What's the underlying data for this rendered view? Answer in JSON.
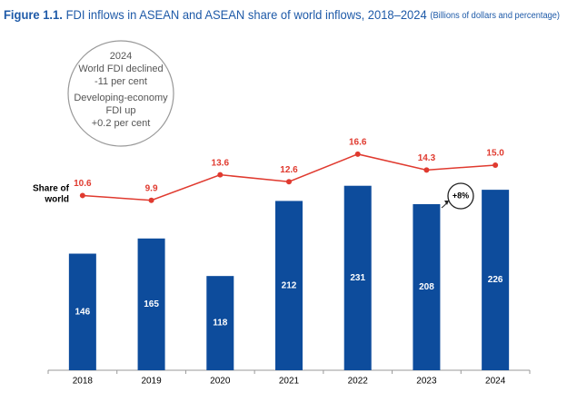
{
  "chart_data": {
    "type": "bar_line",
    "title": "Figure 1.1.",
    "subtitle": "FDI inflows in ASEAN and ASEAN share of world inflows, 2018–2024",
    "units_note": "(Billions of dollars and percentage)",
    "categories": [
      "2018",
      "2019",
      "2020",
      "2021",
      "2022",
      "2023",
      "2024"
    ],
    "series": [
      {
        "name": "FDI inflows",
        "type": "bar",
        "color": "#0d4c9c",
        "values": [
          146,
          165,
          118,
          212,
          231,
          208,
          226
        ]
      },
      {
        "name": [
          "Share of",
          "world"
        ],
        "type": "line",
        "axis": "y2",
        "color": "#e03a2f",
        "values": [
          10.6,
          9.9,
          13.6,
          12.6,
          16.6,
          14.3,
          15.0
        ],
        "value_labels": [
          "10.6",
          "9.9",
          "13.6",
          "12.6",
          "16.6",
          "14.3",
          "15.0"
        ]
      }
    ],
    "ylim": [
      0,
      250
    ],
    "y2lim": [
      0,
      20
    ],
    "annotations": {
      "circle": [
        "2024",
        "World FDI declined",
        "-11 per cent",
        "Developing-economy",
        "FDI up",
        "+0.2 per cent"
      ],
      "growth": "+8%"
    }
  }
}
